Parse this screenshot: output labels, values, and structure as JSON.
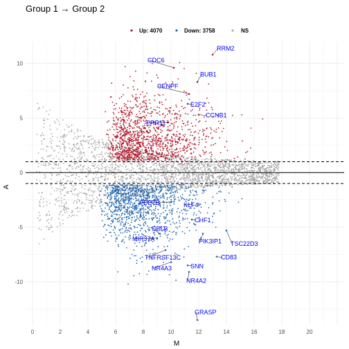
{
  "chart_data": {
    "type": "scatter",
    "title": "Group 1 → Group 2",
    "xlabel": "M",
    "ylabel": "A",
    "xlim": [
      -0.5,
      22.5
    ],
    "ylim": [
      -14,
      12
    ],
    "x_ticks": [
      0,
      2,
      4,
      6,
      8,
      10,
      12,
      14,
      16,
      18,
      20
    ],
    "y_ticks": [
      -10,
      -5,
      0,
      5,
      10
    ],
    "grid": true,
    "hlines": [
      {
        "y": 0,
        "style": "solid"
      },
      {
        "y": 1,
        "style": "dashed"
      },
      {
        "y": -1,
        "style": "dashed"
      }
    ],
    "legend": {
      "position": "top",
      "entries": [
        {
          "label": "Up: 4070",
          "color": "#B2182B"
        },
        {
          "label": "Down: 3758",
          "color": "#2166AC"
        },
        {
          "label": "NS",
          "color": "#A9A9A9"
        }
      ]
    },
    "series": [
      {
        "name": "Up: 4070",
        "color": "#B2182B",
        "count": 4070
      },
      {
        "name": "Down: 3758",
        "color": "#2166AC",
        "count": 3758
      },
      {
        "name": "NS",
        "color": "#A9A9A9"
      }
    ],
    "labeled_points": [
      {
        "label": "RRM2",
        "x": 13.0,
        "y": 10.8,
        "series": "Up: 4070"
      },
      {
        "label": "CDC6",
        "x": 10.2,
        "y": 9.6,
        "series": "Up: 4070"
      },
      {
        "label": "CENPF",
        "x": 11.3,
        "y": 7.2,
        "series": "Up: 4070"
      },
      {
        "label": "BUB1",
        "x": 11.9,
        "y": 8.3,
        "series": "Up: 4070"
      },
      {
        "label": "E2F2",
        "x": 11.2,
        "y": 6.3,
        "series": "Up: 4070"
      },
      {
        "label": "CCNB1",
        "x": 12.0,
        "y": 5.3,
        "series": "Up: 4070"
      },
      {
        "label": "PRR11",
        "x": 9.8,
        "y": 4.6,
        "series": "Up: 4070"
      },
      {
        "label": "PDE7B",
        "x": 10.0,
        "y": -2.7,
        "series": "Down: 3758"
      },
      {
        "label": "KLF4",
        "x": 11.5,
        "y": -2.9,
        "series": "Down: 3758"
      },
      {
        "label": "CHF1",
        "x": 11.5,
        "y": -4.3,
        "series": "Down: 3758"
      },
      {
        "label": "MIR37A",
        "x": 9.0,
        "y": -6.0,
        "series": "Down: 3758"
      },
      {
        "label": "CBLB",
        "x": 9.2,
        "y": -5.6,
        "series": "Down: 3758"
      },
      {
        "label": "PIK3IP1",
        "x": 12.3,
        "y": -5.6,
        "series": "Down: 3758"
      },
      {
        "label": "TSC22D3",
        "x": 14.0,
        "y": -5.3,
        "series": "Down: 3758"
      },
      {
        "label": "TNFRSF13C",
        "x": 9.6,
        "y": -7.1,
        "series": "Down: 3758"
      },
      {
        "label": "CD83",
        "x": 13.3,
        "y": -7.7,
        "series": "Down: 3758"
      },
      {
        "label": "NR4A3",
        "x": 10.0,
        "y": -8.2,
        "series": "Down: 3758"
      },
      {
        "label": "SNN",
        "x": 11.2,
        "y": -8.5,
        "series": "Down: 3758"
      },
      {
        "label": "NR4A2",
        "x": 11.3,
        "y": -9.1,
        "series": "Down: 3758"
      },
      {
        "label": "GRASP",
        "x": 11.9,
        "y": -13.5,
        "series": "Down: 3758"
      }
    ]
  }
}
